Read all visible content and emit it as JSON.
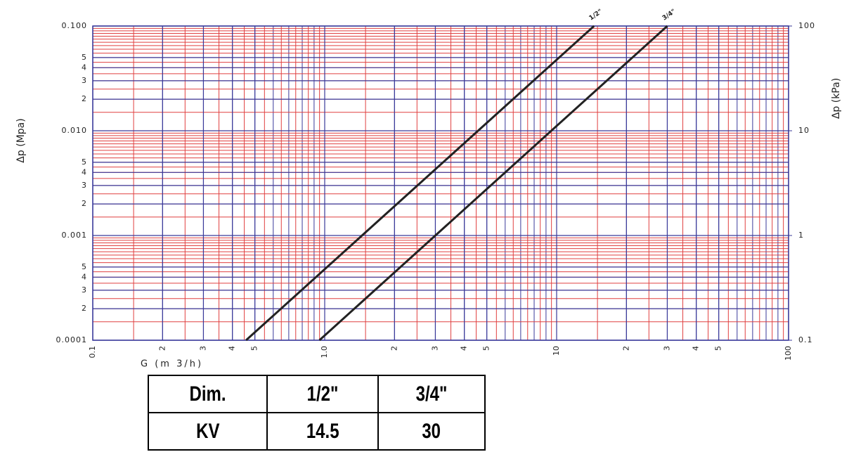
{
  "chart_data": {
    "type": "line",
    "xlabel": "G (m 3/h)",
    "ylabel": "Δp (Mpa)",
    "y2label": "Δp (kPa)",
    "xscale": "log",
    "yscale": "log",
    "xlim": [
      0.1,
      100
    ],
    "ylim": [
      0.0001,
      0.1
    ],
    "y2lim": [
      0.1,
      100
    ],
    "xticks": [
      0.1,
      {
        "value": 0.2,
        "label": "2"
      },
      {
        "value": 0.3,
        "label": "3"
      },
      {
        "value": 0.4,
        "label": "4"
      },
      {
        "value": 0.5,
        "label": "5"
      },
      {
        "value": 1,
        "label": "1.0"
      },
      {
        "value": 2,
        "label": "2"
      },
      {
        "value": 3,
        "label": "3"
      },
      {
        "value": 4,
        "label": "4"
      },
      {
        "value": 5,
        "label": "5"
      },
      10,
      {
        "value": 20,
        "label": "2"
      },
      {
        "value": 30,
        "label": "3"
      },
      {
        "value": 40,
        "label": "4"
      },
      {
        "value": 50,
        "label": "5"
      },
      100
    ],
    "yticks": [
      {
        "value": 0.1,
        "label": "0.100"
      },
      {
        "value": 0.05,
        "label": "5"
      },
      {
        "value": 0.04,
        "label": "4"
      },
      {
        "value": 0.03,
        "label": "3"
      },
      {
        "value": 0.02,
        "label": "2"
      },
      {
        "value": 0.01,
        "label": "0.010"
      },
      {
        "value": 0.005,
        "label": "5"
      },
      {
        "value": 0.004,
        "label": "4"
      },
      {
        "value": 0.003,
        "label": "3"
      },
      {
        "value": 0.002,
        "label": "2"
      },
      0.001,
      {
        "value": 0.0005,
        "label": "5"
      },
      {
        "value": 0.0004,
        "label": "4"
      },
      {
        "value": 0.0003,
        "label": "3"
      },
      {
        "value": 0.0002,
        "label": "2"
      },
      0.0001
    ],
    "y2ticks": [
      100,
      10,
      1,
      0.1
    ],
    "grid": true,
    "series": [
      {
        "name": "1/2\"",
        "color": "#222222",
        "x": [
          0.458,
          14.5
        ],
        "values": [
          0.0001,
          0.1
        ]
      },
      {
        "name": "3/4\"",
        "color": "#222222",
        "x": [
          0.949,
          30
        ],
        "values": [
          0.0001,
          0.1
        ]
      }
    ]
  },
  "table": {
    "rows": [
      [
        "Dim.",
        "1/2\"",
        "3/4\""
      ],
      [
        "KV",
        "14.5",
        "30"
      ]
    ]
  }
}
